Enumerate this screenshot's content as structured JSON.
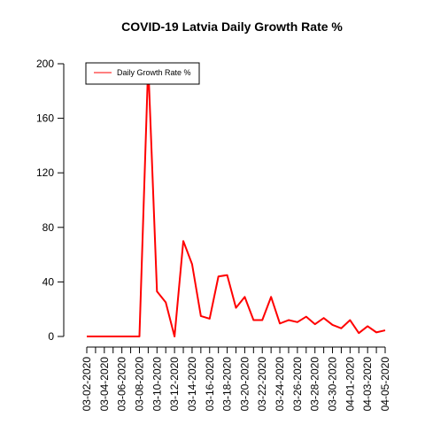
{
  "chart_data": {
    "type": "line",
    "title": "COVID-19 Latvia Daily Growth Rate %",
    "xlabel": "",
    "ylabel": "",
    "x": [
      "03-02-2020",
      "03-03-2020",
      "03-04-2020",
      "03-05-2020",
      "03-06-2020",
      "03-07-2020",
      "03-08-2020",
      "03-09-2020",
      "03-10-2020",
      "03-11-2020",
      "03-12-2020",
      "03-13-2020",
      "03-14-2020",
      "03-15-2020",
      "03-16-2020",
      "03-17-2020",
      "03-18-2020",
      "03-19-2020",
      "03-20-2020",
      "03-21-2020",
      "03-22-2020",
      "03-23-2020",
      "03-24-2020",
      "03-25-2020",
      "03-26-2020",
      "03-27-2020",
      "03-28-2020",
      "03-29-2020",
      "03-30-2020",
      "03-31-2020",
      "04-01-2020",
      "04-02-2020",
      "04-03-2020",
      "04-04-2020",
      "04-05-2020"
    ],
    "x_tick_labels": [
      "03-02-2020",
      "03-04-2020",
      "03-06-2020",
      "03-08-2020",
      "03-10-2020",
      "03-12-2020",
      "03-14-2020",
      "03-16-2020",
      "03-18-2020",
      "03-20-2020",
      "03-22-2020",
      "03-24-2020",
      "03-26-2020",
      "03-28-2020",
      "03-30-2020",
      "04-01-2020",
      "04-03-2020",
      "04-05-2020"
    ],
    "y_ticks": [
      0,
      40,
      80,
      120,
      160,
      200
    ],
    "ylim": [
      0,
      200
    ],
    "grid": false,
    "legend_position": "top-left",
    "series": [
      {
        "name": "Daily Growth Rate %",
        "color": "#ff0000",
        "values": [
          0,
          0,
          0,
          0,
          0,
          0,
          0,
          200,
          33,
          25,
          0,
          70,
          53,
          15,
          13,
          44,
          45,
          21,
          29,
          12,
          12,
          29,
          9.5,
          12,
          10.5,
          14.5,
          9,
          13.5,
          8.5,
          6,
          12,
          2.5,
          7.5,
          3,
          4.5
        ]
      }
    ]
  }
}
